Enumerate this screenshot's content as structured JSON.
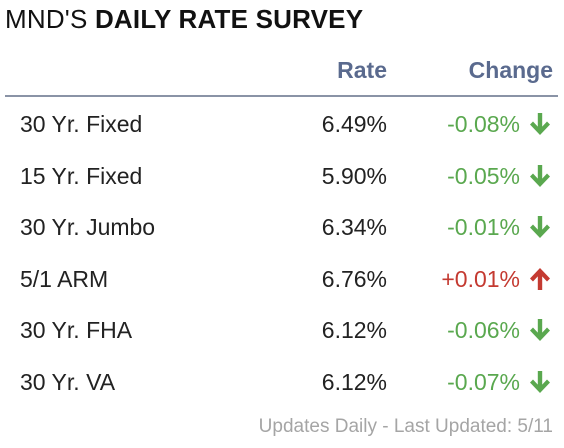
{
  "title": {
    "prefix": "MND'S ",
    "bold": "DAILY RATE SURVEY"
  },
  "columns": {
    "rate": "Rate",
    "change": "Change"
  },
  "colors": {
    "header": "#5a6a8e",
    "down": "#5aa84f",
    "up": "#c43a31",
    "footer": "#a5a5a5"
  },
  "rows": [
    {
      "name": "30 Yr. Fixed",
      "rate": "6.49%",
      "change": "-0.08%",
      "direction": "down",
      "icon": "arrow-down-icon"
    },
    {
      "name": "15 Yr. Fixed",
      "rate": "5.90%",
      "change": "-0.05%",
      "direction": "down",
      "icon": "arrow-down-icon"
    },
    {
      "name": "30 Yr. Jumbo",
      "rate": "6.34%",
      "change": "-0.01%",
      "direction": "down",
      "icon": "arrow-down-icon"
    },
    {
      "name": "5/1 ARM",
      "rate": "6.76%",
      "change": "+0.01%",
      "direction": "up",
      "icon": "arrow-up-icon"
    },
    {
      "name": "30 Yr. FHA",
      "rate": "6.12%",
      "change": "-0.06%",
      "direction": "down",
      "icon": "arrow-down-icon"
    },
    {
      "name": "30 Yr. VA",
      "rate": "6.12%",
      "change": "-0.07%",
      "direction": "down",
      "icon": "arrow-down-icon"
    }
  ],
  "footer": "Updates Daily - Last Updated: 5/11"
}
